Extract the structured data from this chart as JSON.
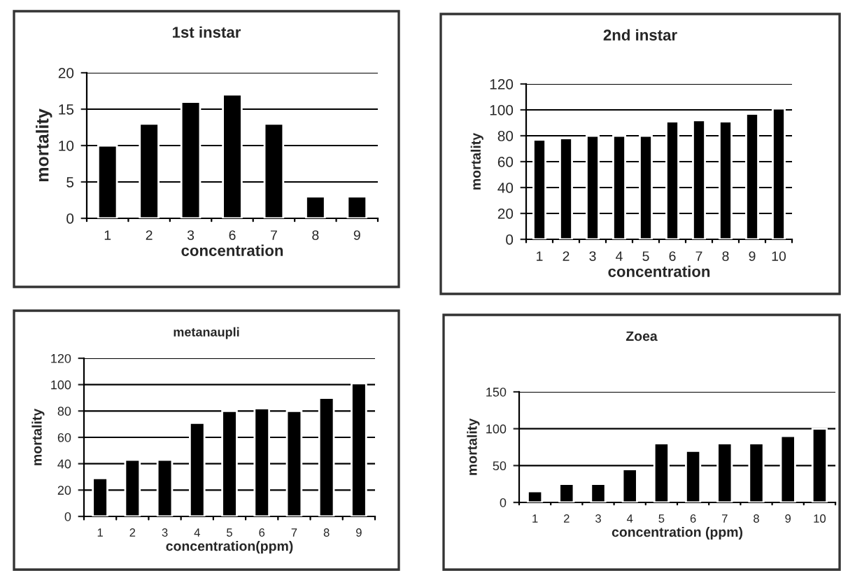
{
  "chart_data": [
    {
      "type": "bar",
      "title": "1st instar",
      "xlabel": "concentration",
      "ylabel": "mortality",
      "categories": [
        "1",
        "2",
        "3",
        "6",
        "7",
        "8",
        "9"
      ],
      "values": [
        10,
        13,
        16,
        17,
        13,
        3,
        3
      ],
      "color": "#000000",
      "ylim": [
        0,
        20
      ],
      "yticks": [
        0,
        5,
        10,
        15,
        20
      ],
      "grid": "y",
      "legend": false
    },
    {
      "type": "bar",
      "title": "2nd instar",
      "xlabel": "concentration",
      "ylabel": "mortality",
      "categories": [
        "1",
        "2",
        "3",
        "4",
        "5",
        "6",
        "7",
        "8",
        "9",
        "10"
      ],
      "values": [
        77,
        78,
        80,
        80,
        80,
        91,
        92,
        91,
        97,
        101
      ],
      "color": "#000000",
      "ylim": [
        0,
        120
      ],
      "yticks": [
        0,
        20,
        40,
        60,
        80,
        100,
        120
      ],
      "grid": "y",
      "legend": false
    },
    {
      "type": "bar",
      "title": "metanaupli",
      "xlabel": "concentration(ppm)",
      "ylabel": "mortality",
      "categories": [
        "1",
        "2",
        "3",
        "4",
        "5",
        "6",
        "7",
        "8",
        "9"
      ],
      "values": [
        29,
        43,
        43,
        71,
        80,
        82,
        80,
        90,
        101
      ],
      "color": "#000000",
      "ylim": [
        0,
        120
      ],
      "yticks": [
        0,
        20,
        40,
        60,
        80,
        100,
        120
      ],
      "grid": "y",
      "legend": false
    },
    {
      "type": "bar",
      "title": "Zoea",
      "xlabel": "concentration (ppm)",
      "ylabel": "mortality",
      "categories": [
        "1",
        "2",
        "3",
        "4",
        "5",
        "6",
        "7",
        "8",
        "9",
        "10"
      ],
      "values": [
        15,
        25,
        25,
        45,
        80,
        70,
        80,
        80,
        90,
        100
      ],
      "color": "#000000",
      "ylim": [
        0,
        150
      ],
      "yticks": [
        0,
        50,
        100,
        150
      ],
      "grid": "y",
      "legend": false
    }
  ]
}
